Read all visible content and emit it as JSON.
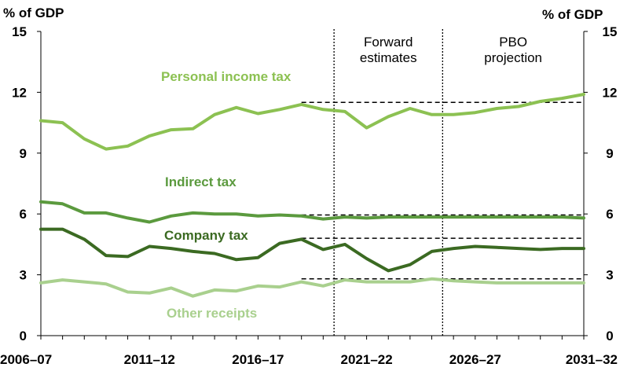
{
  "chart_data": {
    "type": "line",
    "y_unit_left": "% of GDP",
    "y_unit_right": "% of GDP",
    "ylim": [
      0,
      15
    ],
    "yticks": [
      0,
      3,
      6,
      9,
      12,
      15
    ],
    "x": [
      "2006–07",
      "2007–08",
      "2008–09",
      "2009–10",
      "2010–11",
      "2011–12",
      "2012–13",
      "2013–14",
      "2014–15",
      "2015–16",
      "2016–17",
      "2017–18",
      "2018–19",
      "2019–20",
      "2020–21",
      "2021–22",
      "2022–23",
      "2023–24",
      "2024–25",
      "2025–26",
      "2026–27",
      "2027–28",
      "2028–29",
      "2029–30",
      "2030–31",
      "2031–32"
    ],
    "xtick_labels": [
      "2006–07",
      "2011–12",
      "2016–17",
      "2021–22",
      "2026–27",
      "2031–32"
    ],
    "periods": [
      {
        "label_lines": [
          "Forward",
          "estimates"
        ]
      },
      {
        "label_lines": [
          "PBO",
          "projection"
        ]
      }
    ],
    "series": [
      {
        "name": "Personal income tax",
        "color": "#8cc152",
        "values": [
          10.6,
          10.5,
          9.7,
          9.2,
          9.35,
          9.85,
          10.15,
          10.2,
          10.9,
          11.25,
          10.95,
          11.15,
          11.4,
          11.15,
          11.05,
          10.25,
          10.8,
          11.2,
          10.9,
          10.9,
          11.0,
          11.2,
          11.3,
          11.55,
          11.7,
          11.9
        ]
      },
      {
        "name": "Indirect tax",
        "color": "#5b9a3e",
        "values": [
          6.6,
          6.5,
          6.05,
          6.05,
          5.8,
          5.6,
          5.9,
          6.05,
          6.0,
          6.0,
          5.9,
          5.95,
          5.9,
          5.75,
          5.85,
          5.8,
          5.85,
          5.85,
          5.85,
          5.85,
          5.85,
          5.85,
          5.85,
          5.85,
          5.85,
          5.8
        ]
      },
      {
        "name": "Company tax",
        "color": "#3b6a22",
        "values": [
          5.25,
          5.25,
          4.75,
          3.95,
          3.9,
          4.4,
          4.3,
          4.15,
          4.05,
          3.75,
          3.85,
          4.55,
          4.75,
          4.25,
          4.5,
          3.8,
          3.2,
          3.5,
          4.15,
          4.3,
          4.4,
          4.35,
          4.3,
          4.25,
          4.3,
          4.3
        ]
      },
      {
        "name": "Other receipts",
        "color": "#a9d08e",
        "values": [
          2.6,
          2.75,
          2.65,
          2.55,
          2.15,
          2.1,
          2.35,
          1.95,
          2.25,
          2.2,
          2.45,
          2.4,
          2.65,
          2.45,
          2.75,
          2.65,
          2.65,
          2.65,
          2.8,
          2.7,
          2.65,
          2.6,
          2.6,
          2.6,
          2.6,
          2.6
        ]
      }
    ],
    "reference_lines": [
      {
        "series": "Personal income tax",
        "value": 11.5
      },
      {
        "series": "Indirect tax",
        "value": 5.95
      },
      {
        "series": "Company tax",
        "value": 4.8
      },
      {
        "series": "Other receipts",
        "value": 2.8
      }
    ]
  }
}
